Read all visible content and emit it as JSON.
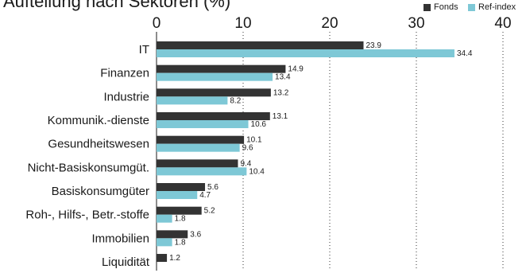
{
  "chart_data": {
    "type": "bar",
    "orientation": "horizontal",
    "title": "Aufteilung nach Sektoren (%)",
    "categories": [
      "IT",
      "Finanzen",
      "Industrie",
      "Kommunik.-dienste",
      "Gesundheitswesen",
      "Nicht-Basiskonsumgüt.",
      "Basiskonsumgüter",
      "Roh-, Hilfs-, Betr.-stoffe",
      "Immobilien",
      "Liquidität"
    ],
    "series": [
      {
        "name": "Fonds",
        "values": [
          23.9,
          14.9,
          13.2,
          13.1,
          10.1,
          9.4,
          5.6,
          5.2,
          3.6,
          1.2
        ],
        "color": "#333333"
      },
      {
        "name": "Ref-index",
        "values": [
          34.4,
          13.4,
          8.2,
          10.6,
          9.6,
          10.4,
          4.7,
          1.8,
          1.8,
          null
        ],
        "color": "#7ec8d6"
      }
    ],
    "xlim": [
      0,
      40
    ],
    "xticks": [
      0,
      10,
      20,
      30,
      40
    ],
    "grid": "vertical dotted",
    "legend_position": "top-right",
    "xlabel": "",
    "ylabel": ""
  }
}
